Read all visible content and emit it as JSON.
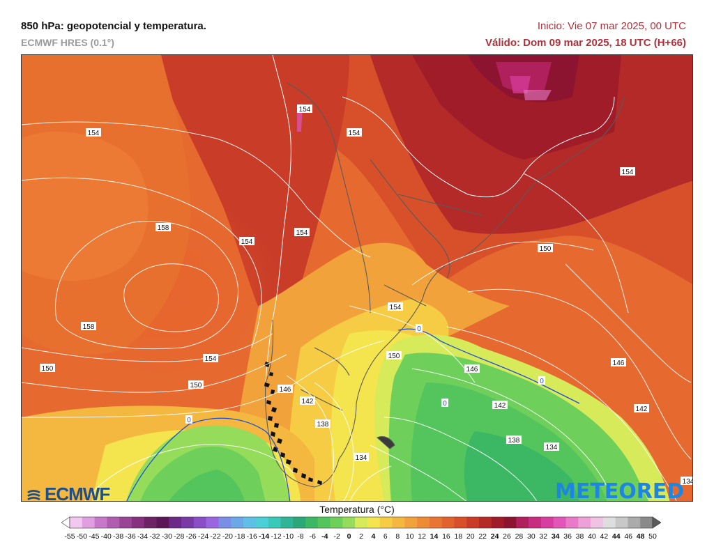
{
  "header": {
    "title": "850 hPa: geopotencial y temperatura.",
    "model": "ECMWF HRES (0.1°)",
    "init": "Inicio: Vie 07 mar 2025, 00 UTC",
    "valid": "Válido: Dom 09 mar 2025, 18 UTC (H+66)"
  },
  "map": {
    "contour_labels": [
      {
        "text": "154"
      },
      {
        "text": "154"
      },
      {
        "text": "154"
      },
      {
        "text": "154"
      },
      {
        "text": "158"
      },
      {
        "text": "154"
      },
      {
        "text": "150"
      },
      {
        "text": "154"
      },
      {
        "text": "158"
      },
      {
        "text": "150"
      },
      {
        "text": "154"
      },
      {
        "text": "150"
      },
      {
        "text": "154"
      },
      {
        "text": "146"
      },
      {
        "text": "150"
      },
      {
        "text": "146"
      },
      {
        "text": "142"
      },
      {
        "text": "138"
      },
      {
        "text": "142"
      },
      {
        "text": "142"
      },
      {
        "text": "138"
      },
      {
        "text": "134"
      },
      {
        "text": "134"
      },
      {
        "text": "146"
      },
      {
        "text": "134"
      }
    ],
    "zero_labels": [
      {
        "text": "0"
      },
      {
        "text": "0"
      },
      {
        "text": "0"
      },
      {
        "text": "0"
      }
    ]
  },
  "logos": {
    "ecmwf": "ECMWF",
    "meteored": "METEORED"
  },
  "legend": {
    "title": "Temperatura (°C)",
    "ticks": [
      "-55",
      "-50",
      "-45",
      "-40",
      "-38",
      "-36",
      "-34",
      "-32",
      "-30",
      "-28",
      "-26",
      "-24",
      "-22",
      "-20",
      "-18",
      "-16",
      "-14",
      "-12",
      "-10",
      "-8",
      "-6",
      "-4",
      "-2",
      "0",
      "2",
      "4",
      "6",
      "8",
      "10",
      "12",
      "14",
      "16",
      "18",
      "20",
      "22",
      "24",
      "26",
      "28",
      "30",
      "32",
      "34",
      "36",
      "38",
      "40",
      "42",
      "44",
      "46",
      "48",
      "50"
    ],
    "bold_ticks": [
      "-14",
      "-4",
      "0",
      "4",
      "14",
      "24",
      "34",
      "44",
      "48"
    ],
    "colors": [
      "#ffffff",
      "#f3c8f0",
      "#e0a0e0",
      "#c878c8",
      "#b05cb0",
      "#9a4496",
      "#86307e",
      "#6e2266",
      "#5c1658",
      "#6a2a86",
      "#7a3aa6",
      "#8a4ec6",
      "#9a66e0",
      "#7a8ee6",
      "#6aa8e8",
      "#5ec0e6",
      "#4ad0d6",
      "#3ac8b8",
      "#30b696",
      "#2aa878",
      "#3cb864",
      "#54c45c",
      "#6ed05a",
      "#94dc5a",
      "#d6ea5a",
      "#f4e44e",
      "#f6cc44",
      "#f4b840",
      "#f2a23a",
      "#ee8c36",
      "#e87632",
      "#e2622e",
      "#d8502a",
      "#c83c28",
      "#b42a28",
      "#a01c28",
      "#8c1430",
      "#b0205c",
      "#c82c80",
      "#d83ea0",
      "#e256b8",
      "#e87ac8",
      "#eea0d8",
      "#f0c2e4",
      "#dedede",
      "#c8c8c8",
      "#ababab",
      "#8a8a8a",
      "#5a5a5a"
    ]
  }
}
